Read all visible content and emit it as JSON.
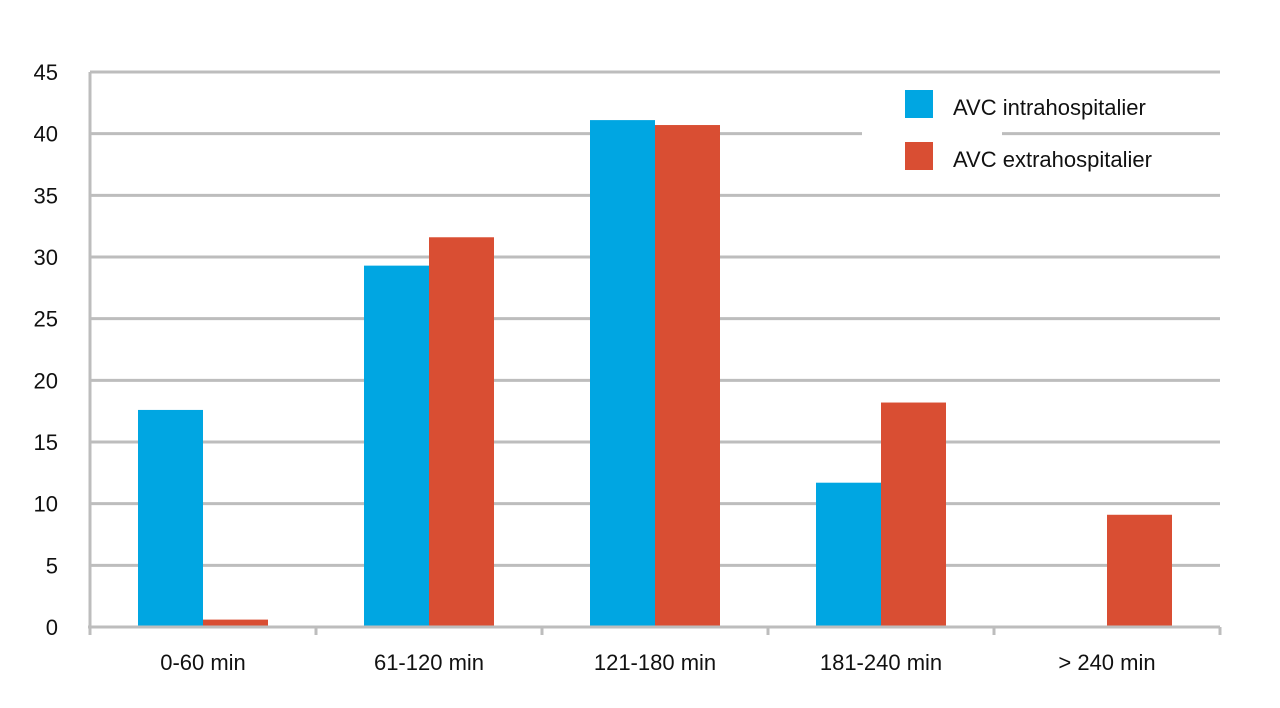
{
  "chart_data": {
    "type": "bar",
    "categories": [
      "0-60 min",
      "61-120 min",
      "121-180 min",
      "181-240 min",
      "> 240 min"
    ],
    "series": [
      {
        "name": "AVC intrahospitalier",
        "values": [
          17.6,
          29.3,
          41.1,
          11.7,
          0
        ],
        "color": "#00A6E2"
      },
      {
        "name": "AVC extrahospitalier",
        "values": [
          0.6,
          31.6,
          40.7,
          18.2,
          9.1
        ],
        "color": "#D94E33"
      }
    ],
    "yticks": [
      "0",
      "5",
      "10",
      "15",
      "20",
      "25",
      "30",
      "35",
      "40",
      "45"
    ],
    "ylim": [
      0,
      45
    ],
    "grid": true,
    "legend_position": "top-right",
    "title": "",
    "xlabel": "",
    "ylabel": ""
  }
}
